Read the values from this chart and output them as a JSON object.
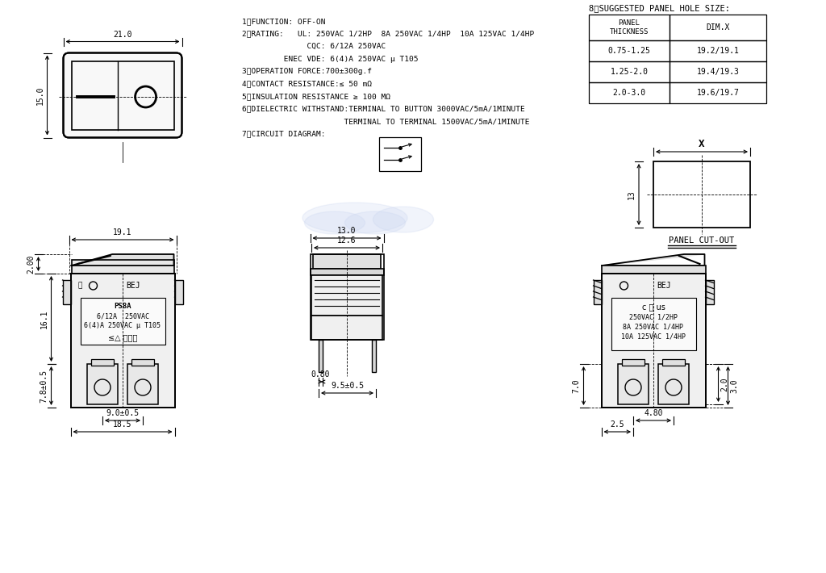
{
  "bg_color": "#ffffff",
  "specs": [
    "1、FUNCTION: OFF-ON",
    "2、RATING:   UL: 250VAC 1/2HP  8A 250VAC 1/4HP  10A 125VAC 1/4HP",
    "              CQC: 6/12A 250VAC",
    "         ENEC VDE: 6(4)A 250VAC μ T105",
    "3、OPERATION FORCE:700±300g.f",
    "4、CONTACT RESISTANCE:≤ 50 mΩ",
    "5、INSULATION RESISTANCE ≥ 100 MΩ",
    "6、DIELECTRIC WITHSTAND:TERMINAL TO BUTTON 3000VAC/5mA/1MINUTE",
    "                      TERMINAL TO TERMINAL 1500VAC/5mA/1MINUTE",
    "7、CIRCUIT DIAGRAM:"
  ],
  "table_title": "8、SUGGESTED PANEL HOLE SIZE:",
  "table_rows": [
    [
      "0.75-1.25",
      "19.2/19.1"
    ],
    [
      "1.25-2.0",
      "19.4/19.3"
    ],
    [
      "2.0-3.0",
      "19.6/19.7"
    ]
  ],
  "panel_cutout_label": "PANEL CUT-OUT",
  "watermark_color": "#c8d4f0"
}
